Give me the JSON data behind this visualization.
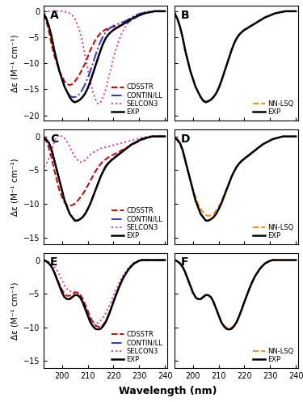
{
  "wavelength": [
    193,
    194,
    195,
    196,
    197,
    198,
    199,
    200,
    201,
    202,
    203,
    204,
    205,
    206,
    207,
    208,
    209,
    210,
    211,
    212,
    213,
    214,
    215,
    216,
    217,
    218,
    219,
    220,
    221,
    222,
    223,
    224,
    225,
    226,
    227,
    228,
    229,
    230,
    231,
    232,
    233,
    234,
    235,
    236,
    237,
    238,
    239,
    240
  ],
  "panel_labels": [
    "A",
    "B",
    "C",
    "D",
    "E",
    "F"
  ],
  "xlim": [
    193,
    241
  ],
  "xticks": [
    200,
    210,
    220,
    230,
    240
  ],
  "ylabel": "Δε (M⁻¹ cm⁻¹)",
  "xlabel": "Wavelength (nm)",
  "colors": {
    "EXP": "#000000",
    "CDSSTR": "#CC0000",
    "CONTIN_LL": "#3333CC",
    "SELCON3": "#CC33CC",
    "NN_LSQ": "#FF8C00"
  },
  "linestyles": {
    "EXP": "-",
    "CDSSTR": "--",
    "CONTIN_LL": "-.",
    "SELCON3": ":",
    "NN_LSQ": "--"
  },
  "linewidths": {
    "EXP": 1.8,
    "CDSSTR": 1.4,
    "CONTIN_LL": 1.4,
    "SELCON3": 1.4,
    "NN_LSQ": 1.4
  },
  "panel_A": {
    "ylim": [
      -21,
      1
    ],
    "yticks": [
      -20,
      -15,
      -10,
      -5,
      0
    ],
    "EXP": [
      -0.5,
      -1.5,
      -3.0,
      -5.0,
      -7.5,
      -9.5,
      -11.5,
      -13.0,
      -14.5,
      -15.5,
      -16.5,
      -17.2,
      -17.5,
      -17.3,
      -17.0,
      -16.5,
      -15.8,
      -14.8,
      -13.5,
      -12.0,
      -10.5,
      -9.0,
      -7.5,
      -6.2,
      -5.2,
      -4.5,
      -4.0,
      -3.6,
      -3.3,
      -3.0,
      -2.7,
      -2.4,
      -2.1,
      -1.8,
      -1.5,
      -1.2,
      -1.0,
      -0.8,
      -0.6,
      -0.4,
      -0.3,
      -0.2,
      -0.1,
      -0.0,
      0.0,
      0.0,
      0.0,
      0.0
    ],
    "CDSSTR": [
      -0.5,
      -2.0,
      -4.0,
      -6.5,
      -8.5,
      -10.0,
      -11.5,
      -12.5,
      -13.5,
      -14.0,
      -14.2,
      -14.0,
      -13.5,
      -12.8,
      -12.0,
      -11.0,
      -10.0,
      -8.8,
      -7.5,
      -6.5,
      -5.5,
      -4.8,
      -4.2,
      -3.8,
      -3.5,
      -3.3,
      -3.1,
      -3.0,
      -2.9,
      -2.8,
      -2.7,
      -2.5,
      -2.3,
      -2.0,
      -1.7,
      -1.4,
      -1.1,
      -0.8,
      -0.6,
      -0.4,
      -0.3,
      -0.2,
      -0.1,
      0.0,
      0.0,
      0.0,
      0.0,
      0.0
    ],
    "CONTIN_LL": [
      -0.5,
      -1.5,
      -3.0,
      -5.0,
      -7.5,
      -9.5,
      -11.5,
      -13.0,
      -14.5,
      -15.5,
      -16.2,
      -16.5,
      -16.5,
      -16.3,
      -15.8,
      -15.0,
      -14.0,
      -12.8,
      -11.5,
      -10.0,
      -8.5,
      -7.0,
      -5.8,
      -4.8,
      -4.0,
      -3.5,
      -3.1,
      -2.8,
      -2.6,
      -2.4,
      -2.2,
      -2.0,
      -1.8,
      -1.5,
      -1.2,
      -0.9,
      -0.7,
      -0.5,
      -0.4,
      -0.3,
      -0.2,
      -0.1,
      0.0,
      0.0,
      0.0,
      0.0,
      0.0,
      0.0
    ],
    "SELCON3": [
      0.0,
      0.0,
      0.0,
      0.0,
      0.0,
      0.0,
      0.0,
      0.0,
      -0.1,
      -0.2,
      -0.4,
      -0.8,
      -1.5,
      -2.5,
      -4.0,
      -6.0,
      -8.5,
      -11.0,
      -13.5,
      -15.5,
      -17.0,
      -17.8,
      -17.5,
      -16.5,
      -15.0,
      -13.0,
      -11.0,
      -9.0,
      -7.2,
      -5.7,
      -4.5,
      -3.5,
      -2.7,
      -2.0,
      -1.5,
      -1.1,
      -0.8,
      -0.5,
      -0.3,
      -0.2,
      -0.1,
      0.0,
      0.0,
      0.0,
      0.0,
      0.0,
      0.0,
      0.0
    ]
  },
  "panel_B": {
    "ylim": [
      -21,
      1
    ],
    "yticks": [
      -20,
      -15,
      -10,
      -5,
      0
    ],
    "EXP": [
      -0.5,
      -1.5,
      -3.0,
      -5.0,
      -7.5,
      -9.5,
      -11.5,
      -13.0,
      -14.5,
      -15.5,
      -16.5,
      -17.2,
      -17.5,
      -17.3,
      -17.0,
      -16.5,
      -15.8,
      -14.8,
      -13.5,
      -12.0,
      -10.5,
      -9.0,
      -7.5,
      -6.2,
      -5.2,
      -4.5,
      -4.0,
      -3.6,
      -3.3,
      -3.0,
      -2.7,
      -2.4,
      -2.1,
      -1.8,
      -1.5,
      -1.2,
      -1.0,
      -0.8,
      -0.6,
      -0.4,
      -0.3,
      -0.2,
      -0.1,
      -0.0,
      0.0,
      0.0,
      0.0,
      0.0
    ],
    "NN_LSQ": [
      -0.5,
      -1.5,
      -3.1,
      -5.1,
      -7.6,
      -9.6,
      -11.5,
      -13.0,
      -14.5,
      -15.5,
      -16.4,
      -17.0,
      -17.3,
      -17.2,
      -16.9,
      -16.4,
      -15.7,
      -14.7,
      -13.4,
      -11.9,
      -10.4,
      -8.9,
      -7.4,
      -6.1,
      -5.1,
      -4.4,
      -3.9,
      -3.5,
      -3.2,
      -2.9,
      -2.6,
      -2.3,
      -2.0,
      -1.7,
      -1.4,
      -1.1,
      -0.9,
      -0.7,
      -0.5,
      -0.4,
      -0.2,
      -0.1,
      -0.1,
      0.0,
      0.0,
      0.0,
      0.0,
      0.0
    ]
  },
  "panel_C": {
    "ylim": [
      -16,
      1
    ],
    "yticks": [
      -15,
      -10,
      -5,
      0
    ],
    "EXP": [
      -0.2,
      -0.5,
      -1.0,
      -2.0,
      -3.5,
      -5.0,
      -6.5,
      -8.0,
      -9.5,
      -10.5,
      -11.5,
      -12.0,
      -12.5,
      -12.5,
      -12.3,
      -12.0,
      -11.5,
      -10.8,
      -10.0,
      -9.0,
      -8.0,
      -7.0,
      -6.0,
      -5.2,
      -4.5,
      -4.0,
      -3.6,
      -3.3,
      -3.0,
      -2.7,
      -2.4,
      -2.1,
      -1.8,
      -1.5,
      -1.2,
      -1.0,
      -0.8,
      -0.6,
      -0.4,
      -0.3,
      -0.2,
      -0.1,
      0.0,
      0.0,
      0.0,
      0.0,
      0.0,
      0.0
    ],
    "CDSSTR": [
      -0.2,
      -0.8,
      -1.8,
      -3.2,
      -5.0,
      -6.5,
      -8.0,
      -9.0,
      -9.8,
      -10.2,
      -10.3,
      -10.2,
      -10.0,
      -9.6,
      -9.1,
      -8.6,
      -8.0,
      -7.3,
      -6.6,
      -5.9,
      -5.2,
      -4.6,
      -4.1,
      -3.7,
      -3.4,
      -3.1,
      -2.9,
      -2.7,
      -2.5,
      -2.3,
      -2.1,
      -1.9,
      -1.7,
      -1.5,
      -1.3,
      -1.1,
      -0.9,
      -0.7,
      -0.5,
      -0.4,
      -0.2,
      -0.1,
      0.0,
      0.0,
      0.0,
      0.0,
      0.0,
      0.0
    ],
    "CONTIN_LL": [
      -0.2,
      -0.5,
      -1.0,
      -2.0,
      -3.5,
      -5.0,
      -6.5,
      -8.0,
      -9.5,
      -10.5,
      -11.5,
      -12.0,
      -12.5,
      -12.5,
      -12.3,
      -12.0,
      -11.5,
      -10.8,
      -10.0,
      -9.0,
      -8.0,
      -7.0,
      -6.0,
      -5.1,
      -4.4,
      -3.9,
      -3.5,
      -3.2,
      -2.9,
      -2.6,
      -2.3,
      -2.0,
      -1.8,
      -1.5,
      -1.2,
      -1.0,
      -0.8,
      -0.6,
      -0.4,
      -0.3,
      -0.2,
      -0.1,
      0.0,
      0.0,
      0.0,
      0.0,
      0.0,
      0.0
    ],
    "SELCON3": [
      -4.5,
      -4.0,
      -3.2,
      -2.0,
      -0.8,
      0.0,
      0.2,
      0.0,
      -0.3,
      -0.8,
      -1.5,
      -2.3,
      -3.0,
      -3.5,
      -3.8,
      -3.8,
      -3.5,
      -3.1,
      -2.7,
      -2.4,
      -2.2,
      -2.0,
      -1.8,
      -1.7,
      -1.6,
      -1.5,
      -1.4,
      -1.3,
      -1.2,
      -1.1,
      -1.0,
      -0.9,
      -0.8,
      -0.7,
      -0.6,
      -0.5,
      -0.4,
      -0.3,
      -0.2,
      -0.1,
      0.0,
      0.0,
      0.0,
      0.0,
      0.0,
      0.0,
      0.0,
      0.0
    ]
  },
  "panel_D": {
    "ylim": [
      -16,
      1
    ],
    "yticks": [
      -15,
      -10,
      -5,
      0
    ],
    "EXP": [
      -0.2,
      -0.5,
      -1.0,
      -2.0,
      -3.5,
      -5.0,
      -6.5,
      -8.0,
      -9.5,
      -10.5,
      -11.5,
      -12.0,
      -12.5,
      -12.5,
      -12.3,
      -12.0,
      -11.5,
      -10.8,
      -10.0,
      -9.0,
      -8.0,
      -7.0,
      -6.0,
      -5.2,
      -4.5,
      -4.0,
      -3.6,
      -3.3,
      -3.0,
      -2.7,
      -2.4,
      -2.1,
      -1.8,
      -1.5,
      -1.2,
      -1.0,
      -0.8,
      -0.6,
      -0.4,
      -0.3,
      -0.2,
      -0.1,
      0.0,
      0.0,
      0.0,
      0.0,
      0.0,
      0.0
    ],
    "NN_LSQ": [
      -0.3,
      -0.7,
      -1.2,
      -2.2,
      -3.7,
      -5.2,
      -6.5,
      -7.8,
      -9.0,
      -10.0,
      -10.8,
      -11.3,
      -11.7,
      -11.8,
      -11.7,
      -11.5,
      -11.0,
      -10.4,
      -9.7,
      -8.8,
      -7.8,
      -6.9,
      -6.0,
      -5.2,
      -4.6,
      -4.1,
      -3.7,
      -3.4,
      -3.1,
      -2.8,
      -2.5,
      -2.2,
      -1.9,
      -1.6,
      -1.3,
      -1.0,
      -0.8,
      -0.6,
      -0.4,
      -0.3,
      -0.2,
      -0.1,
      0.0,
      0.0,
      0.0,
      0.0,
      0.0,
      0.0
    ]
  },
  "panel_E": {
    "ylim": [
      -16,
      1
    ],
    "yticks": [
      -15,
      -10,
      -5,
      0
    ],
    "EXP": [
      0.0,
      -0.2,
      -0.5,
      -1.0,
      -1.8,
      -2.8,
      -3.8,
      -4.8,
      -5.5,
      -5.8,
      -5.8,
      -5.5,
      -5.2,
      -5.2,
      -5.5,
      -6.2,
      -7.2,
      -8.2,
      -9.2,
      -9.8,
      -10.2,
      -10.3,
      -10.2,
      -9.8,
      -9.2,
      -8.3,
      -7.3,
      -6.2,
      -5.2,
      -4.2,
      -3.3,
      -2.5,
      -1.9,
      -1.3,
      -0.9,
      -0.5,
      -0.3,
      -0.1,
      0.0,
      0.0,
      0.0,
      0.0,
      0.0,
      0.0,
      0.0,
      0.0,
      0.0,
      0.0
    ],
    "CDSSTR": [
      0.0,
      -0.2,
      -0.5,
      -1.0,
      -1.8,
      -2.7,
      -3.6,
      -4.4,
      -5.0,
      -5.3,
      -5.3,
      -5.1,
      -4.8,
      -4.8,
      -5.1,
      -5.7,
      -6.6,
      -7.5,
      -8.5,
      -9.2,
      -9.7,
      -9.9,
      -9.9,
      -9.6,
      -9.1,
      -8.3,
      -7.3,
      -6.2,
      -5.2,
      -4.2,
      -3.3,
      -2.5,
      -1.9,
      -1.3,
      -0.9,
      -0.5,
      -0.3,
      -0.1,
      0.0,
      0.0,
      0.0,
      0.0,
      0.0,
      0.0,
      0.0,
      0.0,
      0.0,
      0.0
    ],
    "CONTIN_LL": [
      0.0,
      -0.2,
      -0.5,
      -1.0,
      -1.8,
      -2.8,
      -3.8,
      -4.8,
      -5.5,
      -5.8,
      -5.8,
      -5.5,
      -5.2,
      -5.2,
      -5.5,
      -6.2,
      -7.2,
      -8.2,
      -9.2,
      -9.8,
      -10.2,
      -10.3,
      -10.2,
      -9.8,
      -9.2,
      -8.3,
      -7.3,
      -6.2,
      -5.2,
      -4.2,
      -3.3,
      -2.5,
      -1.9,
      -1.3,
      -0.9,
      -0.5,
      -0.3,
      -0.1,
      0.0,
      0.0,
      0.0,
      0.0,
      0.0,
      0.0,
      0.0,
      0.0,
      0.0,
      0.0
    ],
    "SELCON3": [
      0.0,
      -0.1,
      -0.3,
      -0.6,
      -1.0,
      -1.5,
      -2.2,
      -3.0,
      -3.8,
      -4.3,
      -4.6,
      -4.7,
      -4.7,
      -4.8,
      -5.2,
      -6.0,
      -7.0,
      -7.9,
      -8.7,
      -9.2,
      -9.4,
      -9.3,
      -9.0,
      -8.5,
      -7.9,
      -7.1,
      -6.2,
      -5.3,
      -4.4,
      -3.5,
      -2.8,
      -2.1,
      -1.6,
      -1.1,
      -0.7,
      -0.4,
      -0.2,
      -0.1,
      0.0,
      0.0,
      0.0,
      0.0,
      0.0,
      0.0,
      0.0,
      0.0,
      0.0,
      0.0
    ]
  },
  "panel_F": {
    "ylim": [
      -16,
      1
    ],
    "yticks": [
      -15,
      -10,
      -5,
      0
    ],
    "EXP": [
      0.0,
      -0.2,
      -0.5,
      -1.0,
      -1.8,
      -2.8,
      -3.8,
      -4.8,
      -5.5,
      -5.8,
      -5.8,
      -5.5,
      -5.2,
      -5.2,
      -5.5,
      -6.2,
      -7.2,
      -8.2,
      -9.2,
      -9.8,
      -10.2,
      -10.3,
      -10.2,
      -9.8,
      -9.2,
      -8.3,
      -7.3,
      -6.2,
      -5.2,
      -4.2,
      -3.3,
      -2.5,
      -1.9,
      -1.3,
      -0.9,
      -0.5,
      -0.3,
      -0.1,
      0.0,
      0.0,
      0.0,
      0.0,
      0.0,
      0.0,
      0.0,
      0.0,
      0.0,
      0.0
    ],
    "NN_LSQ": [
      0.0,
      -0.2,
      -0.6,
      -1.1,
      -2.0,
      -3.0,
      -4.0,
      -5.0,
      -5.6,
      -5.8,
      -5.7,
      -5.4,
      -5.1,
      -5.2,
      -5.6,
      -6.4,
      -7.3,
      -8.2,
      -9.1,
      -9.7,
      -10.0,
      -10.1,
      -10.0,
      -9.7,
      -9.1,
      -8.2,
      -7.2,
      -6.1,
      -5.1,
      -4.1,
      -3.2,
      -2.4,
      -1.8,
      -1.2,
      -0.8,
      -0.5,
      -0.2,
      -0.1,
      0.1,
      0.0,
      0.0,
      0.0,
      0.0,
      0.0,
      0.0,
      0.0,
      0.0,
      0.0
    ]
  }
}
